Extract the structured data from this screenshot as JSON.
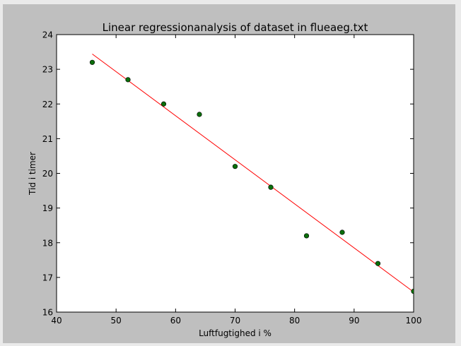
{
  "chart_data": {
    "type": "scatter",
    "title": "Linear regressionanalysis of dataset in flueaeg.txt",
    "xlabel": "Luftfugtighed i %",
    "ylabel": "Tid i timer",
    "xlim": [
      40,
      100
    ],
    "ylim": [
      16,
      24
    ],
    "x_ticks": [
      40,
      50,
      60,
      70,
      80,
      90,
      100
    ],
    "y_ticks": [
      16,
      17,
      18,
      19,
      20,
      21,
      22,
      23,
      24
    ],
    "grid": false,
    "series": [
      {
        "kind": "points",
        "color": "#0a6e0a",
        "x": [
          46,
          52,
          58,
          64,
          70,
          76,
          82,
          88,
          94,
          100
        ],
        "y": [
          23.2,
          22.7,
          22.0,
          21.7,
          20.2,
          19.6,
          18.2,
          18.3,
          17.4,
          16.6
        ]
      },
      {
        "kind": "line",
        "color": "#ff0000",
        "x": [
          46,
          100
        ],
        "y": [
          23.44,
          16.58
        ]
      }
    ]
  }
}
